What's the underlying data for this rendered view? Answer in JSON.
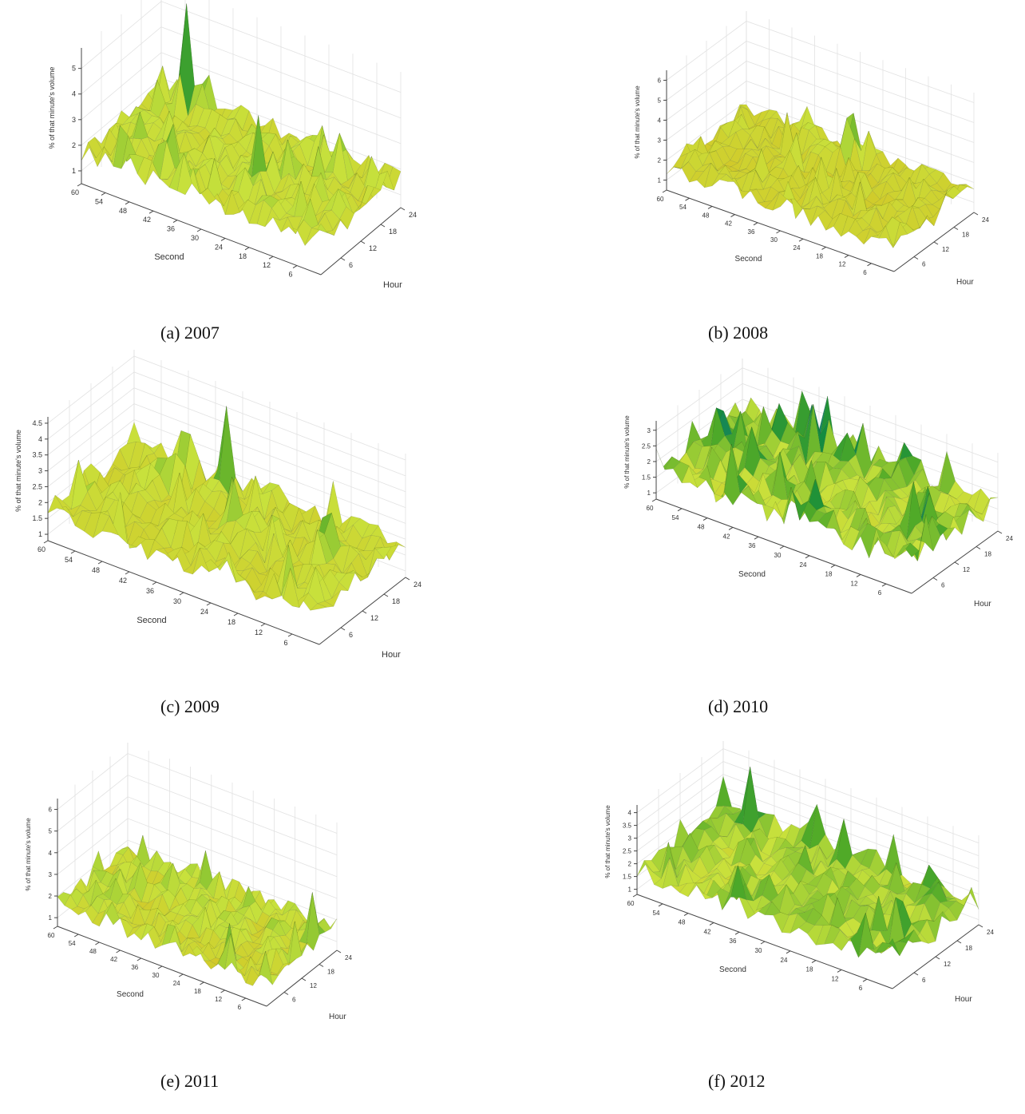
{
  "figure": {
    "zlabel": "% of that minute's volume",
    "second_label": "Second",
    "hour_label": "Hour",
    "second_ticks": [
      "60",
      "54",
      "48",
      "42",
      "36",
      "30",
      "24",
      "18",
      "12",
      "6"
    ],
    "hour_ticks": [
      "6",
      "12",
      "18",
      "24"
    ]
  },
  "panels": [
    {
      "caption": "(a) 2007",
      "zticks": [
        "1",
        "2",
        "3",
        "4",
        "5"
      ]
    },
    {
      "caption": "(b) 2008",
      "zticks": [
        "1",
        "2",
        "3",
        "4",
        "5",
        "6"
      ]
    },
    {
      "caption": "(c) 2009",
      "zticks": [
        "1",
        "1.5",
        "2",
        "2.5",
        "3",
        "3.5",
        "4",
        "4.5"
      ]
    },
    {
      "caption": "(d) 2010",
      "zticks": [
        "1",
        "1.5",
        "2",
        "2.5",
        "3"
      ]
    },
    {
      "caption": "(e) 2011",
      "zticks": [
        "1",
        "2",
        "3",
        "4",
        "5",
        "6"
      ]
    },
    {
      "caption": "(f) 2012",
      "zticks": [
        "1",
        "1.5",
        "2",
        "2.5",
        "3",
        "3.5",
        "4"
      ]
    }
  ],
  "chart_data": [
    {
      "type": "surface",
      "title": "(a) 2007",
      "xlabel": "Second",
      "ylabel": "Hour",
      "zlabel": "% of that minute's volume",
      "xlim": [
        0,
        60
      ],
      "ylim": [
        0,
        24
      ],
      "zlim": [
        0.5,
        5.8
      ],
      "base_level": 1.7,
      "peaks": [
        {
          "second": 52,
          "hour": 22,
          "value": 5.6
        },
        {
          "second": 24,
          "hour": 10,
          "value": 4.2
        },
        {
          "second": 10,
          "hour": 6,
          "value": 2.9
        }
      ]
    },
    {
      "type": "surface",
      "title": "(b) 2008",
      "xlabel": "Second",
      "ylabel": "Hour",
      "zlabel": "% of that minute's volume",
      "xlim": [
        0,
        60
      ],
      "ylim": [
        0,
        24
      ],
      "zlim": [
        0.5,
        6.5
      ],
      "base_level": 1.6,
      "peaks": [
        {
          "second": 30,
          "hour": 21,
          "value": 5.2
        },
        {
          "second": 41,
          "hour": 21,
          "value": 3.8
        },
        {
          "second": 35,
          "hour": 19,
          "value": 3.4
        }
      ]
    },
    {
      "type": "surface",
      "title": "(c) 2009",
      "xlabel": "Second",
      "ylabel": "Hour",
      "zlabel": "% of that minute's volume",
      "xlim": [
        0,
        60
      ],
      "ylim": [
        0,
        24
      ],
      "zlim": [
        0.8,
        4.7
      ],
      "base_level": 1.7,
      "peaks": [
        {
          "second": 38,
          "hour": 22,
          "value": 4.3
        },
        {
          "second": 47,
          "hour": 22,
          "value": 3.6
        }
      ]
    },
    {
      "type": "surface",
      "title": "(d) 2010",
      "xlabel": "Second",
      "ylabel": "Hour",
      "zlabel": "% of that minute's volume",
      "xlim": [
        0,
        60
      ],
      "ylim": [
        0,
        24
      ],
      "zlim": [
        0.8,
        3.3
      ],
      "base_level": 1.7,
      "peaks": [
        {
          "second": 20,
          "hour": 21,
          "value": 2.9
        },
        {
          "second": 48,
          "hour": 20,
          "value": 2.8
        },
        {
          "second": 42,
          "hour": 22,
          "value": 2.9
        }
      ]
    },
    {
      "type": "surface",
      "title": "(e) 2011",
      "xlabel": "Second",
      "ylabel": "Hour",
      "zlabel": "% of that minute's volume",
      "xlim": [
        0,
        60
      ],
      "ylim": [
        0,
        24
      ],
      "zlim": [
        0.6,
        6.5
      ],
      "base_level": 1.6,
      "peaks": [
        {
          "second": 2,
          "hour": 18,
          "value": 3.8
        },
        {
          "second": 36,
          "hour": 22,
          "value": 3.2
        }
      ]
    },
    {
      "type": "surface",
      "title": "(f) 2012",
      "xlabel": "Second",
      "ylabel": "Hour",
      "zlabel": "% of that minute's volume",
      "xlim": [
        0,
        60
      ],
      "ylim": [
        0,
        24
      ],
      "zlim": [
        0.8,
        4.3
      ],
      "base_level": 1.7,
      "peaks": [
        {
          "second": 52,
          "hour": 22,
          "value": 4.0
        },
        {
          "second": 6,
          "hour": 10,
          "value": 2.8
        },
        {
          "second": 30,
          "hour": 22,
          "value": 3.3
        }
      ]
    }
  ]
}
